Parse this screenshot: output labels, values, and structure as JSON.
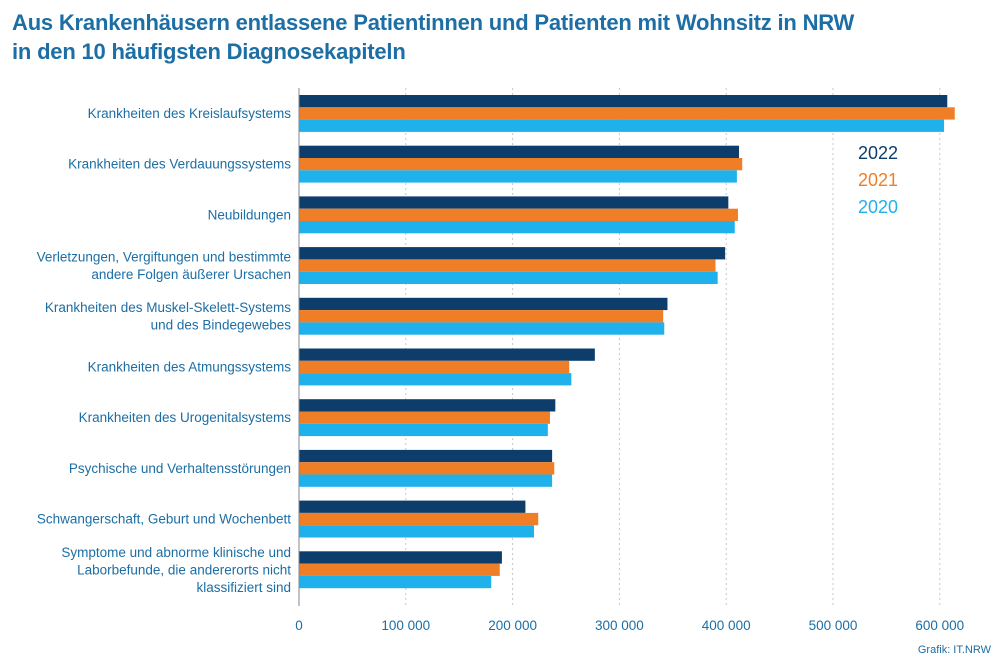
{
  "title_lines": [
    "Aus Krankenhäusern entlassene Patientinnen und Patienten mit Wohnsitz in NRW",
    "in den 10 häufigsten Diagnosekapiteln"
  ],
  "credit": "Grafik: IT.NRW",
  "colors": {
    "2022": "#0d3d6b",
    "2021": "#f07e26",
    "2020": "#1eb1ec",
    "text": "#1c6ea4",
    "grid": "#bfc8d0"
  },
  "chart_data": {
    "type": "bar",
    "orientation": "horizontal",
    "title": "Aus Krankenhäusern entlassene Patientinnen und Patienten mit Wohnsitz in NRW in den 10 häufigsten Diagnosekapiteln",
    "categories": [
      [
        "Krankheiten des Kreislaufsystems"
      ],
      [
        "Krankheiten des Verdauungssystems"
      ],
      [
        "Neubildungen"
      ],
      [
        "Verletzungen, Vergiftungen und bestimmte",
        "andere Folgen äußerer Ursachen"
      ],
      [
        "Krankheiten des Muskel-Skelett-Systems",
        "und des Bindegewebes"
      ],
      [
        "Krankheiten des Atmungssystems"
      ],
      [
        "Krankheiten des Urogenitalsystems"
      ],
      [
        "Psychische und Verhaltensstörungen"
      ],
      [
        "Schwangerschaft, Geburt und Wochenbett"
      ],
      [
        "Symptome und abnorme klinische und",
        "Laborbefunde, die andererorts nicht",
        "klassifiziert sind"
      ]
    ],
    "series": [
      {
        "name": "2022",
        "values": [
          607000,
          412000,
          402000,
          399000,
          345000,
          277000,
          240000,
          237000,
          212000,
          190000
        ]
      },
      {
        "name": "2021",
        "values": [
          614000,
          415000,
          411000,
          390000,
          341000,
          253000,
          235000,
          239000,
          224000,
          188000
        ]
      },
      {
        "name": "2020",
        "values": [
          604000,
          410000,
          408000,
          392000,
          342000,
          255000,
          233000,
          237000,
          220000,
          180000
        ]
      }
    ],
    "xlim": [
      0,
      600000
    ],
    "xticks": [
      0,
      100000,
      200000,
      300000,
      400000,
      500000,
      600000
    ],
    "xtick_labels": [
      "0",
      "100 000",
      "200 000",
      "300 000",
      "400 000",
      "500 000",
      "600 000"
    ],
    "grid": true,
    "legend_position": "top-right"
  }
}
